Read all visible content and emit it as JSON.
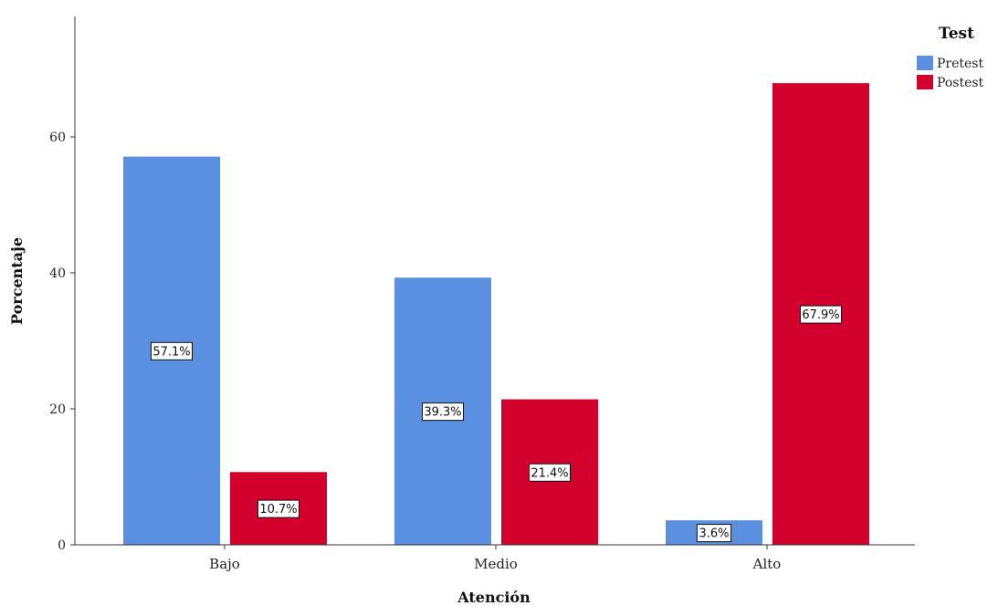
{
  "chart_data": {
    "type": "bar",
    "categories": [
      "Bajo",
      "Medio",
      "Alto"
    ],
    "series": [
      {
        "name": "Pretest",
        "values": [
          57.1,
          39.3,
          3.6
        ],
        "labels": [
          "57.1%",
          "39.3%",
          "3.6%"
        ],
        "color": "#5b8fe0"
      },
      {
        "name": "Postest",
        "values": [
          10.7,
          21.4,
          67.9
        ],
        "labels": [
          "10.7%",
          "21.4%",
          "67.9%"
        ],
        "color": "#d2002d"
      }
    ],
    "xlabel": "Atención",
    "ylabel": "Porcentaje",
    "ylim": [
      0,
      78
    ],
    "yticks": [
      0,
      20,
      40,
      60
    ],
    "legend": {
      "title": "Test",
      "placement": "top-right"
    },
    "grid": false
  }
}
